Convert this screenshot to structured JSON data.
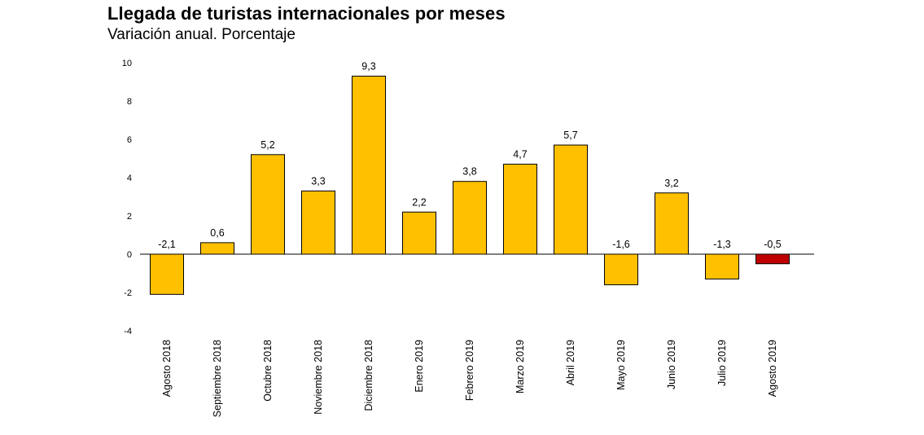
{
  "title": "Llegada de turistas internacionales por meses",
  "subtitle": "Variación anual. Porcentaje",
  "colors": {
    "bar": "#FFC000",
    "highlight": "#C00000",
    "border": "#000000"
  },
  "chart_data": {
    "type": "bar",
    "title": "Llegada de turistas internacionales por meses",
    "subtitle": "Variación anual. Porcentaje",
    "xlabel": "",
    "ylabel": "",
    "ylim": [
      -4,
      10
    ],
    "yticks": [
      10,
      8,
      6,
      4,
      2,
      0,
      -2,
      -4
    ],
    "grid": false,
    "categories": [
      "Agosto 2018",
      "Septiembre 2018",
      "Octubre 2018",
      "Noviembre 2018",
      "Diciembre 2018",
      "Enero 2019",
      "Febrero 2019",
      "Marzo 2019",
      "Abril 2019",
      "Mayo 2019",
      "Junio 2019",
      "Julio 2019",
      "Agosto 2019"
    ],
    "values": [
      -2.1,
      0.6,
      5.2,
      3.3,
      9.3,
      2.2,
      3.8,
      4.7,
      5.7,
      -1.6,
      3.2,
      -1.3,
      -0.5
    ],
    "data_labels": [
      "-2,1",
      "0,6",
      "5,2",
      "3,3",
      "9,3",
      "2,2",
      "3,8",
      "4,7",
      "5,7",
      "-1,6",
      "3,2",
      "-1,3",
      "-0,5"
    ],
    "highlight_index": 12
  }
}
